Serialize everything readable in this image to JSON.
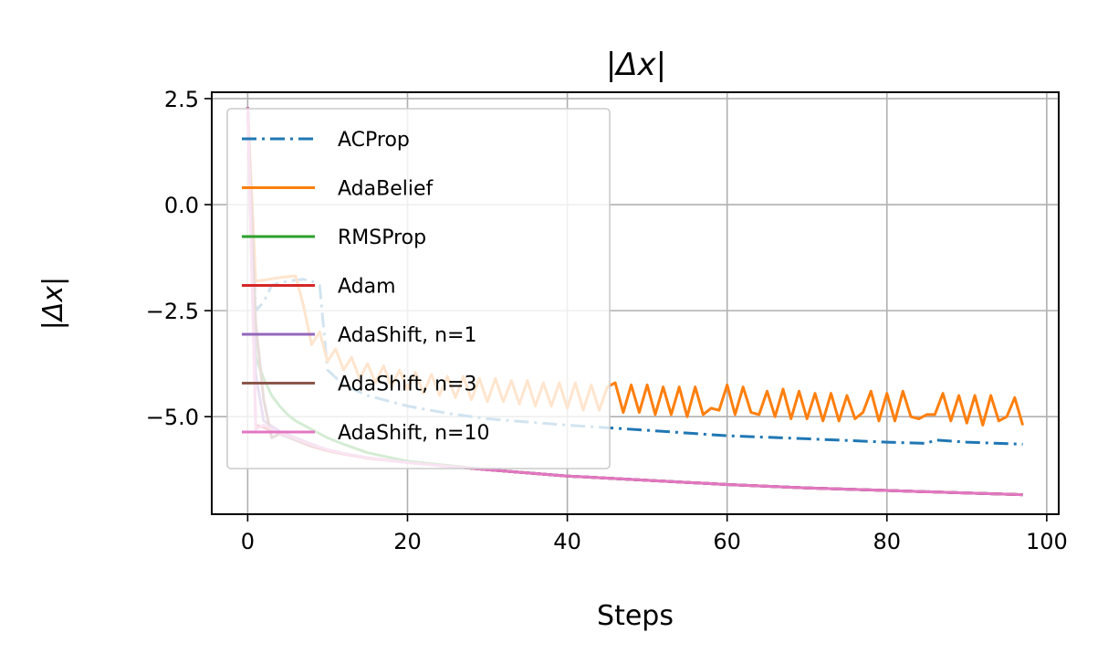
{
  "chart_data": {
    "type": "line",
    "title": "|Δx|",
    "xlabel": "Steps",
    "ylabel": "|Δx|",
    "xlim": [
      -4.5,
      101.5
    ],
    "ylim": [
      -7.3,
      2.65
    ],
    "xticks": [
      0,
      20,
      40,
      60,
      80,
      100
    ],
    "xtick_labels": [
      "0",
      "20",
      "40",
      "60",
      "80",
      "100"
    ],
    "yticks": [
      2.5,
      0.0,
      -2.5,
      -5.0
    ],
    "ytick_labels": [
      "2.5",
      "0.0",
      "−2.5",
      "−5.0"
    ],
    "grid": true,
    "legend_position": "upper-left",
    "series": [
      {
        "name": "ACProp",
        "color": "#1f77b4",
        "style": "dashdot",
        "x": [
          0,
          1,
          2,
          3,
          4,
          5,
          6,
          7,
          8,
          9,
          10,
          12,
          15,
          20,
          25,
          30,
          40,
          50,
          60,
          70,
          80,
          85,
          86,
          90,
          97
        ],
        "y": [
          2.3,
          -2.5,
          -2.3,
          -1.9,
          -1.85,
          -1.8,
          -1.78,
          -1.76,
          -1.8,
          -1.9,
          -3.9,
          -4.25,
          -4.5,
          -4.75,
          -4.92,
          -5.05,
          -5.2,
          -5.32,
          -5.45,
          -5.52,
          -5.6,
          -5.63,
          -5.55,
          -5.6,
          -5.65
        ]
      },
      {
        "name": "AdaBelief",
        "color": "#ff7f0e",
        "style": "solid",
        "x": [
          0,
          1,
          2,
          3,
          4,
          5,
          6,
          7,
          8,
          9,
          10,
          11,
          12,
          13,
          14,
          15,
          16,
          17,
          18,
          19,
          20,
          21,
          22,
          23,
          24,
          25,
          26,
          27,
          28,
          29,
          30,
          31,
          32,
          33,
          34,
          35,
          36,
          37,
          38,
          39,
          40,
          41,
          42,
          43,
          44,
          45,
          46,
          47,
          48,
          49,
          50,
          51,
          52,
          53,
          54,
          55,
          56,
          57,
          58,
          59,
          60,
          61,
          62,
          63,
          64,
          65,
          66,
          67,
          68,
          69,
          70,
          71,
          72,
          73,
          74,
          75,
          76,
          77,
          78,
          79,
          80,
          81,
          82,
          83,
          84,
          85,
          86,
          87,
          88,
          89,
          90,
          91,
          92,
          93,
          94,
          95,
          96,
          97
        ],
        "y": [
          2.3,
          -1.8,
          -1.78,
          -1.75,
          -1.72,
          -1.7,
          -1.68,
          -2.4,
          -3.3,
          -3.0,
          -3.7,
          -3.4,
          -3.9,
          -3.6,
          -4.1,
          -3.75,
          -4.2,
          -3.8,
          -4.3,
          -3.9,
          -4.35,
          -3.95,
          -4.45,
          -4.0,
          -4.5,
          -4.05,
          -4.55,
          -4.05,
          -4.6,
          -4.1,
          -4.65,
          -4.1,
          -4.65,
          -4.15,
          -4.7,
          -4.15,
          -4.75,
          -4.2,
          -4.75,
          -4.2,
          -4.8,
          -4.2,
          -4.85,
          -4.25,
          -4.85,
          -4.3,
          -4.2,
          -4.9,
          -4.25,
          -4.9,
          -4.25,
          -4.95,
          -4.3,
          -4.95,
          -4.3,
          -5.0,
          -4.3,
          -4.95,
          -4.8,
          -4.85,
          -4.25,
          -4.95,
          -4.3,
          -4.9,
          -4.95,
          -4.4,
          -5.0,
          -4.35,
          -5.05,
          -4.4,
          -5.05,
          -4.45,
          -5.1,
          -4.45,
          -5.1,
          -4.5,
          -5.05,
          -4.9,
          -4.4,
          -5.1,
          -4.45,
          -5.1,
          -4.4,
          -5.0,
          -5.05,
          -4.95,
          -4.95,
          -4.45,
          -5.1,
          -4.5,
          -5.15,
          -4.5,
          -5.2,
          -4.5,
          -5.1,
          -5.0,
          -4.55,
          -5.2
        ]
      },
      {
        "name": "RMSProp",
        "color": "#2ca02c",
        "style": "solid",
        "x": [
          0,
          1,
          2,
          3,
          4,
          5,
          6,
          8,
          10,
          12,
          15,
          20,
          25,
          30,
          40,
          50,
          60,
          70,
          80,
          90,
          97
        ],
        "y": [
          2.3,
          -3.6,
          -4.1,
          -4.5,
          -4.75,
          -4.95,
          -5.1,
          -5.3,
          -5.5,
          -5.65,
          -5.85,
          -6.05,
          -6.15,
          -6.25,
          -6.4,
          -6.5,
          -6.6,
          -6.68,
          -6.74,
          -6.8,
          -6.84
        ]
      },
      {
        "name": "Adam",
        "color": "#d62728",
        "style": "solid",
        "x": [
          0,
          1,
          2,
          4,
          6,
          8,
          10,
          12,
          15,
          20,
          25,
          30,
          40,
          50,
          60,
          70,
          80,
          90,
          97
        ],
        "y": [
          2.3,
          -5.2,
          -5.25,
          -5.4,
          -5.55,
          -5.7,
          -5.8,
          -5.88,
          -5.98,
          -6.08,
          -6.17,
          -6.25,
          -6.4,
          -6.5,
          -6.6,
          -6.68,
          -6.74,
          -6.8,
          -6.84
        ]
      },
      {
        "name": "AdaShift, n=1",
        "color": "#9467bd",
        "style": "solid",
        "x": [
          0,
          1,
          2,
          4,
          6,
          8,
          10,
          12,
          15,
          20,
          25,
          30,
          40,
          50,
          60,
          70,
          80,
          90,
          97
        ],
        "y": [
          2.3,
          -4.0,
          -5.1,
          -5.35,
          -5.5,
          -5.65,
          -5.78,
          -5.87,
          -5.97,
          -6.08,
          -6.17,
          -6.25,
          -6.4,
          -6.5,
          -6.6,
          -6.68,
          -6.74,
          -6.8,
          -6.84
        ]
      },
      {
        "name": "AdaShift, n=3",
        "color": "#8c564b",
        "style": "solid",
        "x": [
          0,
          1,
          2,
          3,
          4,
          6,
          8,
          10,
          12,
          15,
          20,
          25,
          30,
          40,
          50,
          60,
          70,
          80,
          90,
          97
        ],
        "y": [
          2.3,
          -2.8,
          -4.6,
          -5.5,
          -5.4,
          -5.55,
          -5.68,
          -5.78,
          -5.87,
          -5.97,
          -6.08,
          -6.17,
          -6.25,
          -6.4,
          -6.5,
          -6.6,
          -6.68,
          -6.74,
          -6.8,
          -6.84
        ]
      },
      {
        "name": "AdaShift, n=10",
        "color": "#e377c2",
        "style": "solid",
        "x": [
          0,
          1,
          2,
          4,
          6,
          8,
          10,
          12,
          15,
          20,
          25,
          30,
          40,
          50,
          60,
          70,
          80,
          90,
          97
        ],
        "y": [
          2.3,
          -5.3,
          -5.2,
          -5.38,
          -5.52,
          -5.66,
          -5.78,
          -5.87,
          -5.97,
          -6.08,
          -6.17,
          -6.25,
          -6.4,
          -6.5,
          -6.6,
          -6.68,
          -6.74,
          -6.8,
          -6.84
        ]
      }
    ]
  }
}
